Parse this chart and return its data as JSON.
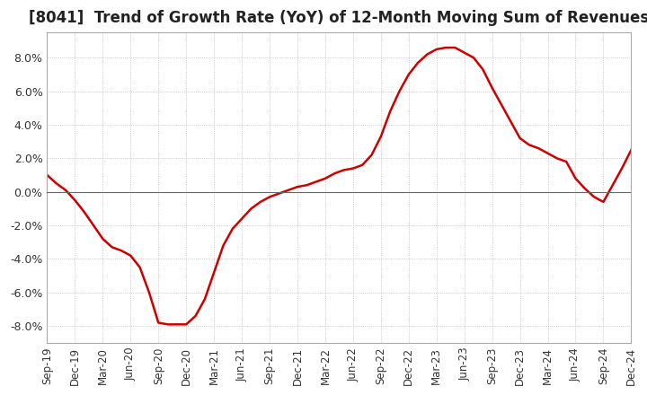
{
  "title": "[8041]  Trend of Growth Rate (YoY) of 12-Month Moving Sum of Revenues",
  "title_fontsize": 12,
  "ylim": [
    -0.09,
    0.095
  ],
  "yticks": [
    -0.08,
    -0.06,
    -0.04,
    -0.02,
    0.0,
    0.02,
    0.04,
    0.06,
    0.08
  ],
  "line_color": "#cc0000",
  "background_color": "#ffffff",
  "values": [
    0.01,
    0.005,
    0.001,
    -0.005,
    -0.012,
    -0.02,
    -0.028,
    -0.033,
    -0.035,
    -0.038,
    -0.045,
    -0.06,
    -0.078,
    -0.079,
    -0.079,
    -0.079,
    -0.074,
    -0.064,
    -0.048,
    -0.032,
    -0.022,
    -0.016,
    -0.01,
    -0.006,
    -0.003,
    -0.001,
    0.001,
    0.003,
    0.004,
    0.006,
    0.008,
    0.011,
    0.013,
    0.014,
    0.016,
    0.022,
    0.033,
    0.048,
    0.06,
    0.07,
    0.077,
    0.082,
    0.085,
    0.086,
    0.086,
    0.083,
    0.08,
    0.073,
    0.062,
    0.052,
    0.042,
    0.032,
    0.028,
    0.026,
    0.023,
    0.02,
    0.018,
    0.008,
    0.002,
    -0.003,
    -0.006,
    0.004,
    0.014,
    0.025
  ],
  "xtick_positions": [
    0,
    3,
    6,
    9,
    12,
    15,
    18,
    21,
    24,
    27,
    30,
    33,
    36,
    39,
    42,
    45,
    48,
    51,
    54,
    57,
    60,
    63
  ],
  "xtick_labels": [
    "Sep-19",
    "Dec-19",
    "Mar-20",
    "Jun-20",
    "Sep-20",
    "Dec-20",
    "Mar-21",
    "Jun-21",
    "Sep-21",
    "Dec-21",
    "Mar-22",
    "Jun-22",
    "Sep-22",
    "Dec-22",
    "Mar-23",
    "Jun-23",
    "Sep-23",
    "Dec-23",
    "Mar-24",
    "Jun-24",
    "Sep-24",
    "Dec-24"
  ]
}
